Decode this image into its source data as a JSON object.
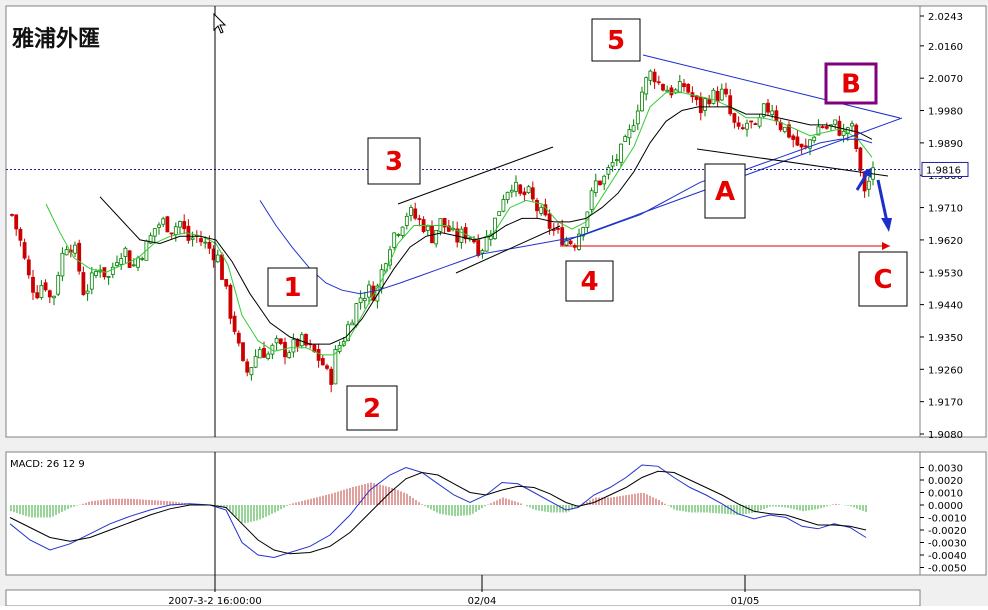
{
  "watermark": "雅浦外匯",
  "chart_data": [
    {
      "type": "candlestick",
      "title": "",
      "ylim": [
        1.908,
        2.0243
      ],
      "y_ticks": [
        "2.0243",
        "2.0160",
        "2.0070",
        "1.9980",
        "1.9890",
        "1.9800",
        "1.9710",
        "1.9620",
        "1.9530",
        "1.9440",
        "1.9350",
        "1.9260",
        "1.9170",
        "1.9080"
      ],
      "current_price": "1.9816",
      "x_labels": [
        "2007-3-2 16:00:00",
        "02/04",
        "01/05"
      ],
      "wave_labels": [
        "1",
        "2",
        "3",
        "4",
        "5",
        "A",
        "B",
        "C"
      ],
      "close_path": [
        [
          0,
          1.969
        ],
        [
          8,
          1.962
        ],
        [
          16,
          1.952
        ],
        [
          24,
          1.947
        ],
        [
          32,
          1.951
        ],
        [
          40,
          1.944
        ],
        [
          48,
          1.956
        ],
        [
          56,
          1.962
        ],
        [
          64,
          1.958
        ],
        [
          72,
          1.947
        ],
        [
          80,
          1.951
        ],
        [
          88,
          1.955
        ],
        [
          96,
          1.951
        ],
        [
          104,
          1.957
        ],
        [
          112,
          1.96
        ],
        [
          120,
          1.954
        ],
        [
          128,
          1.958
        ],
        [
          136,
          1.961
        ],
        [
          144,
          1.966
        ],
        [
          152,
          1.967
        ],
        [
          160,
          1.965
        ],
        [
          168,
          1.967
        ],
        [
          176,
          1.962
        ],
        [
          184,
          1.963
        ],
        [
          192,
          1.961
        ],
        [
          200,
          1.959
        ],
        [
          206,
          1.957
        ],
        [
          212,
          1.95
        ],
        [
          218,
          1.942
        ],
        [
          224,
          1.936
        ],
        [
          230,
          1.927
        ],
        [
          236,
          1.925
        ],
        [
          242,
          1.929
        ],
        [
          248,
          1.932
        ],
        [
          256,
          1.93
        ],
        [
          264,
          1.933
        ],
        [
          272,
          1.931
        ],
        [
          280,
          1.932
        ],
        [
          288,
          1.934
        ],
        [
          296,
          1.932
        ],
        [
          304,
          1.93
        ],
        [
          312,
          1.927
        ],
        [
          318,
          1.922
        ],
        [
          324,
          1.931
        ],
        [
          332,
          1.935
        ],
        [
          340,
          1.941
        ],
        [
          348,
          1.946
        ],
        [
          356,
          1.948
        ],
        [
          364,
          1.947
        ],
        [
          372,
          1.956
        ],
        [
          380,
          1.963
        ],
        [
          388,
          1.966
        ],
        [
          396,
          1.97
        ],
        [
          404,
          1.968
        ],
        [
          412,
          1.966
        ],
        [
          420,
          1.963
        ],
        [
          428,
          1.967
        ],
        [
          436,
          1.965
        ],
        [
          444,
          1.962
        ],
        [
          452,
          1.964
        ],
        [
          460,
          1.963
        ],
        [
          468,
          1.959
        ],
        [
          476,
          1.963
        ],
        [
          484,
          1.968
        ],
        [
          492,
          1.975
        ],
        [
          500,
          1.978
        ],
        [
          508,
          1.974
        ],
        [
          516,
          1.975
        ],
        [
          524,
          1.971
        ],
        [
          532,
          1.968
        ],
        [
          540,
          1.965
        ],
        [
          548,
          1.963
        ],
        [
          556,
          1.962
        ],
        [
          562,
          1.961
        ],
        [
          568,
          1.965
        ],
        [
          576,
          1.971
        ],
        [
          584,
          1.978
        ],
        [
          592,
          1.979
        ],
        [
          600,
          1.983
        ],
        [
          608,
          1.986
        ],
        [
          616,
          1.99
        ],
        [
          624,
          1.998
        ],
        [
          632,
          2.005
        ],
        [
          640,
          2.009
        ],
        [
          648,
          2.005
        ],
        [
          656,
          2.004
        ],
        [
          664,
          2.003
        ],
        [
          672,
          2.005
        ],
        [
          680,
          2.002
        ],
        [
          688,
          1.998
        ],
        [
          696,
          2.002
        ],
        [
          704,
          2.002
        ],
        [
          712,
          2.003
        ],
        [
          720,
          1.995
        ],
        [
          728,
          1.991
        ],
        [
          736,
          1.995
        ],
        [
          744,
          1.992
        ],
        [
          752,
          1.998
        ],
        [
          760,
          1.999
        ],
        [
          768,
          1.994
        ],
        [
          776,
          1.992
        ],
        [
          784,
          1.989
        ],
        [
          792,
          1.986
        ],
        [
          800,
          1.991
        ],
        [
          808,
          1.994
        ],
        [
          816,
          1.993
        ],
        [
          824,
          1.994
        ],
        [
          832,
          1.991
        ],
        [
          838,
          1.995
        ],
        [
          844,
          1.988
        ],
        [
          848,
          1.98
        ],
        [
          852,
          1.976
        ],
        [
          856,
          1.978
        ],
        [
          862,
          1.981
        ]
      ],
      "ma_fast": [
        [
          36,
          1.972
        ],
        [
          50,
          1.964
        ],
        [
          64,
          1.957
        ],
        [
          80,
          1.954
        ],
        [
          96,
          1.953
        ],
        [
          112,
          1.955
        ],
        [
          128,
          1.957
        ],
        [
          144,
          1.961
        ],
        [
          160,
          1.963
        ],
        [
          176,
          1.964
        ],
        [
          192,
          1.963
        ],
        [
          206,
          1.961
        ],
        [
          218,
          1.955
        ],
        [
          232,
          1.941
        ],
        [
          248,
          1.934
        ],
        [
          264,
          1.931
        ],
        [
          280,
          1.932
        ],
        [
          296,
          1.932
        ],
        [
          312,
          1.93
        ],
        [
          324,
          1.93
        ],
        [
          340,
          1.935
        ],
        [
          356,
          1.943
        ],
        [
          372,
          1.951
        ],
        [
          388,
          1.961
        ],
        [
          404,
          1.966
        ],
        [
          420,
          1.966
        ],
        [
          436,
          1.966
        ],
        [
          452,
          1.964
        ],
        [
          468,
          1.962
        ],
        [
          484,
          1.964
        ],
        [
          500,
          1.971
        ],
        [
          516,
          1.973
        ],
        [
          532,
          1.972
        ],
        [
          548,
          1.967
        ],
        [
          562,
          1.965
        ],
        [
          576,
          1.967
        ],
        [
          592,
          1.974
        ],
        [
          608,
          1.981
        ],
        [
          624,
          1.988
        ],
        [
          640,
          1.999
        ],
        [
          656,
          2.003
        ],
        [
          672,
          2.003
        ],
        [
          688,
          2.002
        ],
        [
          704,
          2.001
        ],
        [
          720,
          1.999
        ],
        [
          736,
          1.996
        ],
        [
          752,
          1.996
        ],
        [
          768,
          1.995
        ],
        [
          784,
          1.993
        ],
        [
          800,
          1.991
        ],
        [
          816,
          1.992
        ],
        [
          832,
          1.993
        ],
        [
          848,
          1.99
        ],
        [
          862,
          1.985
        ]
      ],
      "ma_mid": [
        [
          90,
          1.974
        ],
        [
          110,
          1.968
        ],
        [
          130,
          1.962
        ],
        [
          150,
          1.961
        ],
        [
          170,
          1.963
        ],
        [
          190,
          1.963
        ],
        [
          206,
          1.962
        ],
        [
          222,
          1.956
        ],
        [
          240,
          1.947
        ],
        [
          260,
          1.939
        ],
        [
          280,
          1.935
        ],
        [
          300,
          1.933
        ],
        [
          320,
          1.933
        ],
        [
          336,
          1.935
        ],
        [
          352,
          1.94
        ],
        [
          368,
          1.947
        ],
        [
          384,
          1.954
        ],
        [
          400,
          1.96
        ],
        [
          416,
          1.963
        ],
        [
          432,
          1.964
        ],
        [
          448,
          1.963
        ],
        [
          464,
          1.962
        ],
        [
          480,
          1.963
        ],
        [
          496,
          1.966
        ],
        [
          512,
          1.968
        ],
        [
          528,
          1.968
        ],
        [
          544,
          1.967
        ],
        [
          560,
          1.967
        ],
        [
          576,
          1.968
        ],
        [
          592,
          1.971
        ],
        [
          608,
          1.975
        ],
        [
          624,
          1.981
        ],
        [
          640,
          1.989
        ],
        [
          656,
          1.995
        ],
        [
          672,
          1.998
        ],
        [
          688,
          1.999
        ],
        [
          704,
          1.999
        ],
        [
          720,
          1.999
        ],
        [
          736,
          1.997
        ],
        [
          752,
          1.997
        ],
        [
          768,
          1.996
        ],
        [
          784,
          1.995
        ],
        [
          800,
          1.994
        ],
        [
          816,
          1.994
        ],
        [
          832,
          1.993
        ],
        [
          848,
          1.992
        ],
        [
          862,
          1.99
        ]
      ],
      "ma_slow": [
        [
          250,
          1.973
        ],
        [
          266,
          1.966
        ],
        [
          282,
          1.96
        ],
        [
          300,
          1.954
        ],
        [
          316,
          1.95
        ],
        [
          332,
          1.948
        ],
        [
          350,
          1.947
        ],
        [
          368,
          1.948
        ],
        [
          390,
          1.95
        ],
        [
          410,
          1.952
        ],
        [
          430,
          1.954
        ],
        [
          450,
          1.956
        ],
        [
          470,
          1.958
        ],
        [
          490,
          1.959
        ],
        [
          510,
          1.96
        ],
        [
          530,
          1.961
        ],
        [
          550,
          1.962
        ],
        [
          570,
          1.963
        ],
        [
          590,
          1.965
        ],
        [
          610,
          1.967
        ],
        [
          630,
          1.969
        ],
        [
          650,
          1.972
        ],
        [
          670,
          1.975
        ],
        [
          690,
          1.978
        ],
        [
          710,
          1.98
        ],
        [
          730,
          1.981
        ],
        [
          750,
          1.983
        ],
        [
          770,
          1.985
        ],
        [
          790,
          1.987
        ],
        [
          810,
          1.989
        ],
        [
          830,
          1.99
        ],
        [
          850,
          1.99
        ],
        [
          862,
          1.989
        ]
      ]
    },
    {
      "type": "macd",
      "title": "MACD: 26 12 9",
      "ylim": [
        -0.0052,
        0.0036
      ],
      "y_ticks": [
        "0.0030",
        "0.0020",
        "0.0010",
        "0.0000",
        "-0.0010",
        "-0.0020",
        "-0.0030",
        "-0.0040",
        "-0.0050"
      ],
      "macd_line": [
        [
          0,
          -0.0015
        ],
        [
          20,
          -0.0028
        ],
        [
          40,
          -0.0036
        ],
        [
          60,
          -0.0031
        ],
        [
          80,
          -0.0023
        ],
        [
          100,
          -0.0015
        ],
        [
          120,
          -0.0009
        ],
        [
          140,
          -0.0004
        ],
        [
          160,
          0.0
        ],
        [
          180,
          0.0001
        ],
        [
          200,
          0.0
        ],
        [
          216,
          -0.0004
        ],
        [
          232,
          -0.003
        ],
        [
          248,
          -0.004
        ],
        [
          264,
          -0.0042
        ],
        [
          280,
          -0.0038
        ],
        [
          300,
          -0.0033
        ],
        [
          320,
          -0.0024
        ],
        [
          340,
          -0.0008
        ],
        [
          360,
          0.0012
        ],
        [
          380,
          0.0024
        ],
        [
          396,
          0.003
        ],
        [
          412,
          0.0026
        ],
        [
          428,
          0.0017
        ],
        [
          444,
          0.0008
        ],
        [
          460,
          0.0002
        ],
        [
          476,
          0.0008
        ],
        [
          492,
          0.0018
        ],
        [
          508,
          0.0017
        ],
        [
          524,
          0.001
        ],
        [
          540,
          0.0003
        ],
        [
          556,
          -0.0004
        ],
        [
          568,
          -0.0002
        ],
        [
          584,
          0.0008
        ],
        [
          600,
          0.0014
        ],
        [
          616,
          0.0022
        ],
        [
          632,
          0.0032
        ],
        [
          648,
          0.0031
        ],
        [
          664,
          0.0022
        ],
        [
          680,
          0.0014
        ],
        [
          696,
          0.0008
        ],
        [
          712,
          0.0001
        ],
        [
          728,
          -0.0007
        ],
        [
          744,
          -0.0011
        ],
        [
          760,
          -0.0008
        ],
        [
          776,
          -0.001
        ],
        [
          792,
          -0.0017
        ],
        [
          808,
          -0.0019
        ],
        [
          824,
          -0.0015
        ],
        [
          840,
          -0.0018
        ],
        [
          856,
          -0.0026
        ]
      ],
      "signal_line": [
        [
          0,
          -0.001
        ],
        [
          20,
          -0.0018
        ],
        [
          40,
          -0.0026
        ],
        [
          60,
          -0.0029
        ],
        [
          80,
          -0.0026
        ],
        [
          100,
          -0.002
        ],
        [
          120,
          -0.0014
        ],
        [
          140,
          -0.0008
        ],
        [
          160,
          -0.0003
        ],
        [
          180,
          0.0
        ],
        [
          200,
          0.0
        ],
        [
          216,
          -0.0002
        ],
        [
          232,
          -0.0015
        ],
        [
          248,
          -0.0028
        ],
        [
          264,
          -0.0036
        ],
        [
          280,
          -0.0039
        ],
        [
          300,
          -0.0038
        ],
        [
          320,
          -0.0033
        ],
        [
          340,
          -0.0022
        ],
        [
          360,
          -0.0006
        ],
        [
          380,
          0.001
        ],
        [
          396,
          0.0021
        ],
        [
          412,
          0.0026
        ],
        [
          428,
          0.0024
        ],
        [
          444,
          0.0017
        ],
        [
          460,
          0.001
        ],
        [
          476,
          0.0008
        ],
        [
          492,
          0.0012
        ],
        [
          508,
          0.0015
        ],
        [
          524,
          0.0014
        ],
        [
          540,
          0.0009
        ],
        [
          556,
          0.0002
        ],
        [
          568,
          -0.0001
        ],
        [
          584,
          0.0002
        ],
        [
          600,
          0.0008
        ],
        [
          616,
          0.0014
        ],
        [
          632,
          0.0022
        ],
        [
          648,
          0.0027
        ],
        [
          664,
          0.0026
        ],
        [
          680,
          0.002
        ],
        [
          696,
          0.0014
        ],
        [
          712,
          0.0008
        ],
        [
          728,
          0.0001
        ],
        [
          744,
          -0.0005
        ],
        [
          760,
          -0.0007
        ],
        [
          776,
          -0.0008
        ],
        [
          792,
          -0.0012
        ],
        [
          808,
          -0.0016
        ],
        [
          824,
          -0.0016
        ],
        [
          840,
          -0.0017
        ],
        [
          856,
          -0.002
        ]
      ]
    }
  ]
}
